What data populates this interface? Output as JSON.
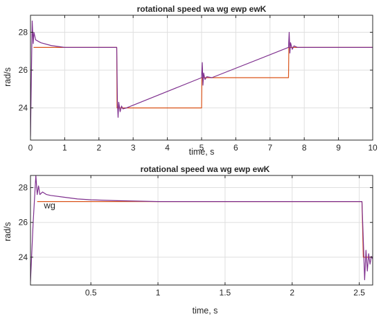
{
  "chart_data": [
    {
      "type": "line",
      "title": "rotational speed wa wg ewp ewK",
      "xlabel": "time, s",
      "ylabel": "rad/s",
      "xlim": [
        0,
        10
      ],
      "ylim": [
        22.3,
        28.9
      ],
      "xticks": [
        0,
        1,
        2,
        3,
        4,
        5,
        6,
        7,
        8,
        9,
        10
      ],
      "yticks": [
        24,
        26,
        28
      ],
      "grid": true,
      "annotations": [],
      "series": [
        {
          "color": "#d95319",
          "x": [
            0.09,
            0.1,
            2.52,
            2.53,
            5.0,
            5.01,
            7.54,
            7.55,
            10.0
          ],
          "values": [
            27.2,
            27.2,
            27.2,
            24.0,
            24.0,
            25.6,
            25.6,
            27.2,
            27.2
          ]
        },
        {
          "color": "#7e2f8e",
          "x": [
            0.0,
            0.05,
            0.08,
            0.1,
            0.15,
            0.3,
            0.6,
            1.0,
            2.52,
            2.54,
            2.56,
            2.58,
            2.62,
            2.66,
            2.7,
            2.8,
            5.0,
            5.02,
            5.04,
            5.06,
            5.1,
            5.15,
            5.3,
            7.54,
            7.56,
            7.58,
            7.6,
            7.65,
            7.7,
            7.8,
            10.0
          ],
          "values": [
            22.5,
            28.6,
            27.4,
            28.0,
            27.6,
            27.45,
            27.3,
            27.2,
            27.2,
            24.4,
            23.5,
            24.3,
            23.8,
            24.1,
            23.95,
            24.0,
            25.6,
            26.4,
            25.2,
            25.85,
            25.5,
            25.65,
            25.6,
            27.2,
            28.0,
            26.9,
            27.45,
            27.1,
            27.28,
            27.2,
            27.2
          ]
        }
      ]
    },
    {
      "type": "line",
      "title": "rotational speed wa wg ewp ewK",
      "xlabel": "time, s",
      "ylabel": "rad/s",
      "xlim": [
        0.05,
        2.6
      ],
      "ylim": [
        22.4,
        28.7
      ],
      "xticks": [
        0.5,
        1,
        1.5,
        2,
        2.5
      ],
      "yticks": [
        24,
        26,
        28
      ],
      "grid": true,
      "annotations": [
        {
          "text": "wg",
          "x": 0.15,
          "y": 27.0
        }
      ],
      "series": [
        {
          "color": "#d95319",
          "x": [
            0.1,
            0.2,
            0.5,
            1.0,
            1.5,
            2.0,
            2.52,
            2.53,
            2.6
          ],
          "values": [
            27.2,
            27.2,
            27.2,
            27.2,
            27.2,
            27.2,
            27.2,
            24.0,
            24.0
          ]
        },
        {
          "color": "#7e2f8e",
          "x": [
            0.05,
            0.07,
            0.09,
            0.1,
            0.11,
            0.12,
            0.14,
            0.17,
            0.2,
            0.3,
            0.4,
            0.5,
            0.7,
            1.0,
            1.5,
            2.0,
            2.52,
            2.53,
            2.54,
            2.55,
            2.56,
            2.57,
            2.58,
            2.59,
            2.6
          ],
          "values": [
            22.6,
            26.0,
            28.7,
            27.6,
            28.1,
            27.6,
            27.75,
            27.6,
            27.55,
            27.45,
            27.35,
            27.3,
            27.25,
            27.2,
            27.2,
            27.2,
            27.2,
            25.0,
            22.7,
            24.4,
            23.2,
            24.2,
            23.6,
            24.05,
            23.9
          ]
        }
      ]
    }
  ]
}
